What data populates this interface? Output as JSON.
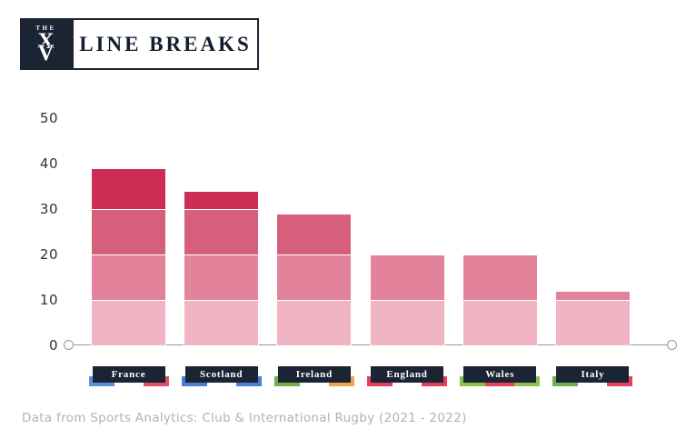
{
  "header": {
    "brand_the": "THE",
    "brand_monogram_x": "X",
    "brand_monogram_v": "V",
    "title": "LINE BREAKS"
  },
  "chart_data": {
    "type": "bar",
    "title": "LINE BREAKS",
    "xlabel": "",
    "ylabel": "",
    "categories": [
      "France",
      "Scotland",
      "Ireland",
      "England",
      "Wales",
      "Italy"
    ],
    "values": [
      39,
      34,
      29,
      20,
      20,
      12
    ],
    "block_size": 10,
    "block_colors": [
      "#f1b4c3",
      "#e2839b",
      "#d6607c",
      "#cb2e52"
    ],
    "y_ticks": [
      0,
      10,
      20,
      30,
      40,
      50
    ],
    "ylim": [
      0,
      50
    ],
    "grid": false,
    "legend": "none",
    "bar_style": "stacked in 10-unit blocks, darker toward top",
    "flag_accents": {
      "France": [
        "#5b8fd9",
        "#ffffff",
        "#e0506a"
      ],
      "Scotland": [
        "#4a7fd4",
        "#ffffff",
        "#4a7fd4"
      ],
      "Ireland": [
        "#6fb04a",
        "#ffffff",
        "#f0a54f"
      ],
      "England": [
        "#e03e5c",
        "#ffffff",
        "#e03e5c"
      ],
      "Wales": [
        "#8bc34a",
        "#e8415f",
        "#8bc34a"
      ],
      "Italy": [
        "#6fb04a",
        "#ffffff",
        "#e8415f"
      ]
    }
  },
  "footer": {
    "source": "Data from Sports Analytics: Club & International Rugby (2021 - 2022)"
  },
  "colors": {
    "navy": "#1b2433",
    "axis_line": "#9097a1",
    "tick_label": "#2b3442",
    "footer_text": "#b1b1ba",
    "background": "#ffffff"
  }
}
